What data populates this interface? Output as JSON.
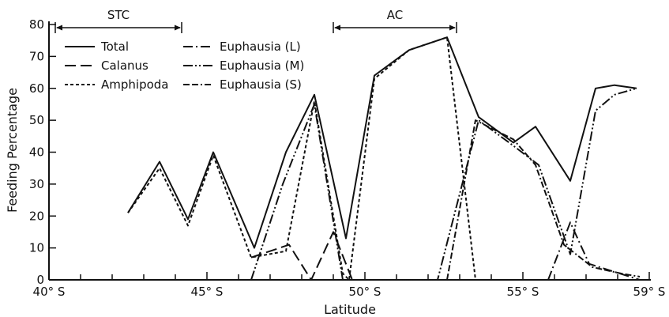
{
  "chart_data": {
    "type": "line",
    "xlabel": "Latitude",
    "ylabel": "Feeding Percentage",
    "xlim": [
      40,
      59
    ],
    "ylim": [
      0,
      80
    ],
    "grid": false,
    "legend_position": "top-left",
    "x_ticks": [
      {
        "value": 40,
        "label": "40° S"
      },
      {
        "value": 45,
        "label": "45° S"
      },
      {
        "value": 50,
        "label": "50° S"
      },
      {
        "value": 55,
        "label": "55° S"
      },
      {
        "value": 59,
        "label": "59° S"
      }
    ],
    "y_ticks": [
      0,
      10,
      20,
      30,
      40,
      50,
      60,
      70,
      80
    ],
    "annotations": [
      {
        "label": "STC",
        "from": 40.2,
        "to": 44.2
      },
      {
        "label": "AC",
        "from": 49.0,
        "to": 52.9
      }
    ],
    "series": [
      {
        "name": "Total",
        "dash": "solid",
        "x": [
          42.5,
          43.5,
          44.4,
          45.2,
          46.5,
          47.5,
          48.4,
          49.4,
          50.3,
          51.4,
          52.6,
          53.6,
          54.7,
          55.4,
          56.5,
          57.3,
          57.9,
          58.6
        ],
        "y": [
          21,
          37,
          19,
          40,
          10,
          40,
          58,
          13,
          64,
          72,
          76,
          51,
          43,
          48,
          31,
          60,
          61,
          60
        ]
      },
      {
        "name": "Calanus",
        "dash": "long-dash",
        "x": [
          46.4,
          47.6,
          48.3,
          49.0,
          49.6
        ],
        "y": [
          7,
          11,
          0,
          15,
          0
        ]
      },
      {
        "name": "Amphipoda",
        "dash": "short-dash",
        "x": [
          42.5,
          43.5,
          44.4,
          45.2,
          46.4,
          47.5,
          48.4,
          49.3,
          49.5,
          50.3,
          51.4,
          52.6,
          53.5
        ],
        "y": [
          21,
          35,
          17,
          39,
          7,
          9,
          56,
          2,
          0,
          63,
          72,
          76,
          0
        ]
      },
      {
        "name": "Euphausia (L)",
        "dash": "dash-dot",
        "x": [
          55.8,
          56.5,
          57.1,
          58.7
        ],
        "y": [
          0,
          18,
          5,
          0
        ]
      },
      {
        "name": "Euphausia (M)",
        "dash": "dash-dot-dot",
        "x": [
          46.4,
          47.4,
          48.4,
          49.3,
          52.3,
          53.6,
          54.7,
          55.5,
          56.5,
          57.3,
          57.9,
          58.6
        ],
        "y": [
          0,
          30,
          55,
          0,
          0,
          50,
          42,
          36,
          8,
          53,
          58,
          60
        ]
      },
      {
        "name": "Euphausia (S)",
        "dash": "dash-dash-dot",
        "x": [
          52.6,
          53.5,
          54.7,
          55.4,
          56.3,
          57.2,
          58.1,
          58.7
        ],
        "y": [
          0,
          50,
          44,
          36,
          11,
          4,
          2,
          1
        ]
      }
    ]
  }
}
